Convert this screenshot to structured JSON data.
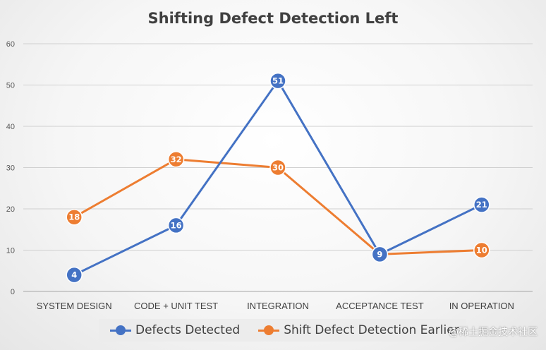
{
  "chart_data": {
    "type": "line",
    "title": "Shifting Defect Detection Left",
    "xlabel": "",
    "ylabel": "",
    "categories": [
      "SYSTEM DESIGN",
      "CODE + UNIT TEST",
      "INTEGRATION",
      "ACCEPTANCE TEST",
      "IN OPERATION"
    ],
    "series": [
      {
        "name": "Defects Detected",
        "values": [
          4,
          16,
          51,
          9,
          21
        ],
        "color": "#4472C4"
      },
      {
        "name": "Shift Defect Detection Earlier",
        "values": [
          18,
          32,
          30,
          9,
          10
        ],
        "color": "#ED7D31"
      }
    ],
    "ylim": [
      0,
      60
    ],
    "yticks": [
      0,
      10,
      20,
      30,
      40,
      50,
      60
    ],
    "grid": true,
    "legend": "bottom",
    "data_labels": true
  },
  "watermark": "@稀土掘金技术社区"
}
